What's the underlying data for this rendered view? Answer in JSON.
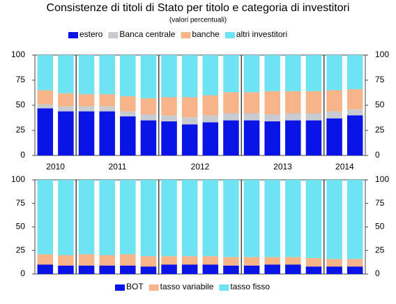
{
  "chart_data": [
    {
      "type": "stacked_bar",
      "title": "Consistenze di titoli di Stato per titolo e categoria di investitori",
      "subtitle": "(valori percentuali)",
      "categories": [
        null,
        null,
        null,
        null,
        null,
        null,
        null,
        null,
        null,
        null,
        null,
        null,
        null,
        null,
        null,
        null
      ],
      "x_groups": [
        {
          "label": "2010",
          "bars": 2
        },
        {
          "label": "2011",
          "bars": 4
        },
        {
          "label": "2012",
          "bars": 4
        },
        {
          "label": "2013",
          "bars": 4
        },
        {
          "label": "2014",
          "bars": 2
        }
      ],
      "series": [
        {
          "name": "estero",
          "color": "#0a14e6",
          "values": [
            47,
            44,
            44,
            44,
            39,
            35,
            34,
            31,
            33,
            35,
            35,
            34,
            35,
            35,
            37,
            40
          ]
        },
        {
          "name": "Banca centrale",
          "color": "#c8cbd0",
          "values": [
            4,
            5,
            5,
            5,
            5,
            6,
            6,
            7,
            7,
            7,
            7,
            7,
            7,
            7,
            7,
            6
          ]
        },
        {
          "name": "banche",
          "color": "#f6b488",
          "values": [
            14,
            13,
            12,
            12,
            15,
            16,
            18,
            20,
            20,
            21,
            21,
            23,
            22,
            22,
            21,
            20
          ]
        },
        {
          "name": "altri investitori",
          "color": "#6ee3f2",
          "values": [
            35,
            38,
            39,
            39,
            41,
            43,
            42,
            42,
            40,
            37,
            37,
            36,
            36,
            36,
            35,
            34
          ]
        }
      ],
      "ylim": [
        0,
        100
      ],
      "yticks": [
        0,
        25,
        50,
        75,
        100
      ],
      "legend": "top"
    },
    {
      "type": "stacked_bar",
      "categories": [
        null,
        null,
        null,
        null,
        null,
        null,
        null,
        null,
        null,
        null,
        null,
        null,
        null,
        null,
        null,
        null
      ],
      "series": [
        {
          "name": "BOT",
          "color": "#0a14e6",
          "values": [
            10,
            9,
            9,
            9,
            9,
            8,
            10,
            10,
            10,
            9,
            9,
            10,
            10,
            8,
            8,
            8
          ]
        },
        {
          "name": "tasso variabile",
          "color": "#f6b488",
          "values": [
            11,
            11,
            12,
            11,
            12,
            11,
            9,
            9,
            9,
            9,
            9,
            8,
            8,
            9,
            8,
            8
          ]
        },
        {
          "name": "tasso fisso",
          "color": "#6ee3f2",
          "values": [
            79,
            80,
            79,
            80,
            79,
            81,
            81,
            81,
            81,
            82,
            82,
            82,
            82,
            83,
            84,
            84
          ]
        }
      ],
      "ylim": [
        0,
        100
      ],
      "yticks": [
        0,
        25,
        50,
        75,
        100
      ],
      "legend": "bottom"
    }
  ]
}
